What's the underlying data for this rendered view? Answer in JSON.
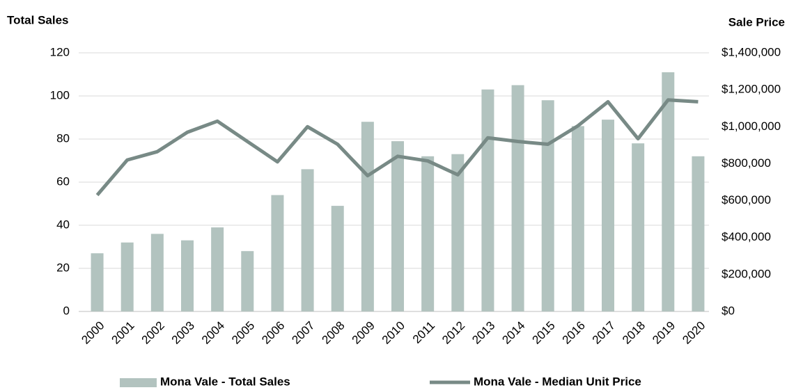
{
  "chart_data": {
    "type": "bar-line",
    "y_label": "Total Sales",
    "y2_label": "Sale Price",
    "categories": [
      "2000",
      "2001",
      "2002",
      "2003",
      "2004",
      "2005",
      "2006",
      "2007",
      "2008",
      "2009",
      "2010",
      "2011",
      "2012",
      "2013",
      "2014",
      "2015",
      "2016",
      "2017",
      "2018",
      "2019",
      "2020"
    ],
    "series": [
      {
        "name": "Mona Vale - Total Sales",
        "type": "bar",
        "color": "#b2c3bf",
        "values": [
          27,
          32,
          36,
          33,
          39,
          28,
          54,
          66,
          49,
          88,
          79,
          72,
          73,
          103,
          105,
          98,
          86,
          89,
          78,
          111,
          72
        ]
      },
      {
        "name": "Mona Vale - Median Unit Price",
        "type": "line",
        "axis": "y2",
        "color": "#788a86",
        "values": [
          630000,
          820000,
          865000,
          970000,
          1030000,
          920000,
          810000,
          1000000,
          905000,
          735000,
          840000,
          815000,
          740000,
          940000,
          920000,
          905000,
          1005000,
          1135000,
          935000,
          1145000,
          1135000
        ]
      }
    ],
    "ylim": [
      0,
      120
    ],
    "yticks": [
      0,
      20,
      40,
      60,
      80,
      100,
      120
    ],
    "y2lim": [
      0,
      1400000
    ],
    "y2ticks": [
      {
        "value": 0,
        "label": "$0"
      },
      {
        "value": 200000,
        "label": "$200,000"
      },
      {
        "value": 400000,
        "label": "$400,000"
      },
      {
        "value": 600000,
        "label": "$600,000"
      },
      {
        "value": 800000,
        "label": "$800,000"
      },
      {
        "value": 1000000,
        "label": "$1,000,000"
      },
      {
        "value": 1200000,
        "label": "$1,200,000"
      },
      {
        "value": 1400000,
        "label": "$1,400,000"
      }
    ],
    "grid": true,
    "legend": "bottom"
  }
}
